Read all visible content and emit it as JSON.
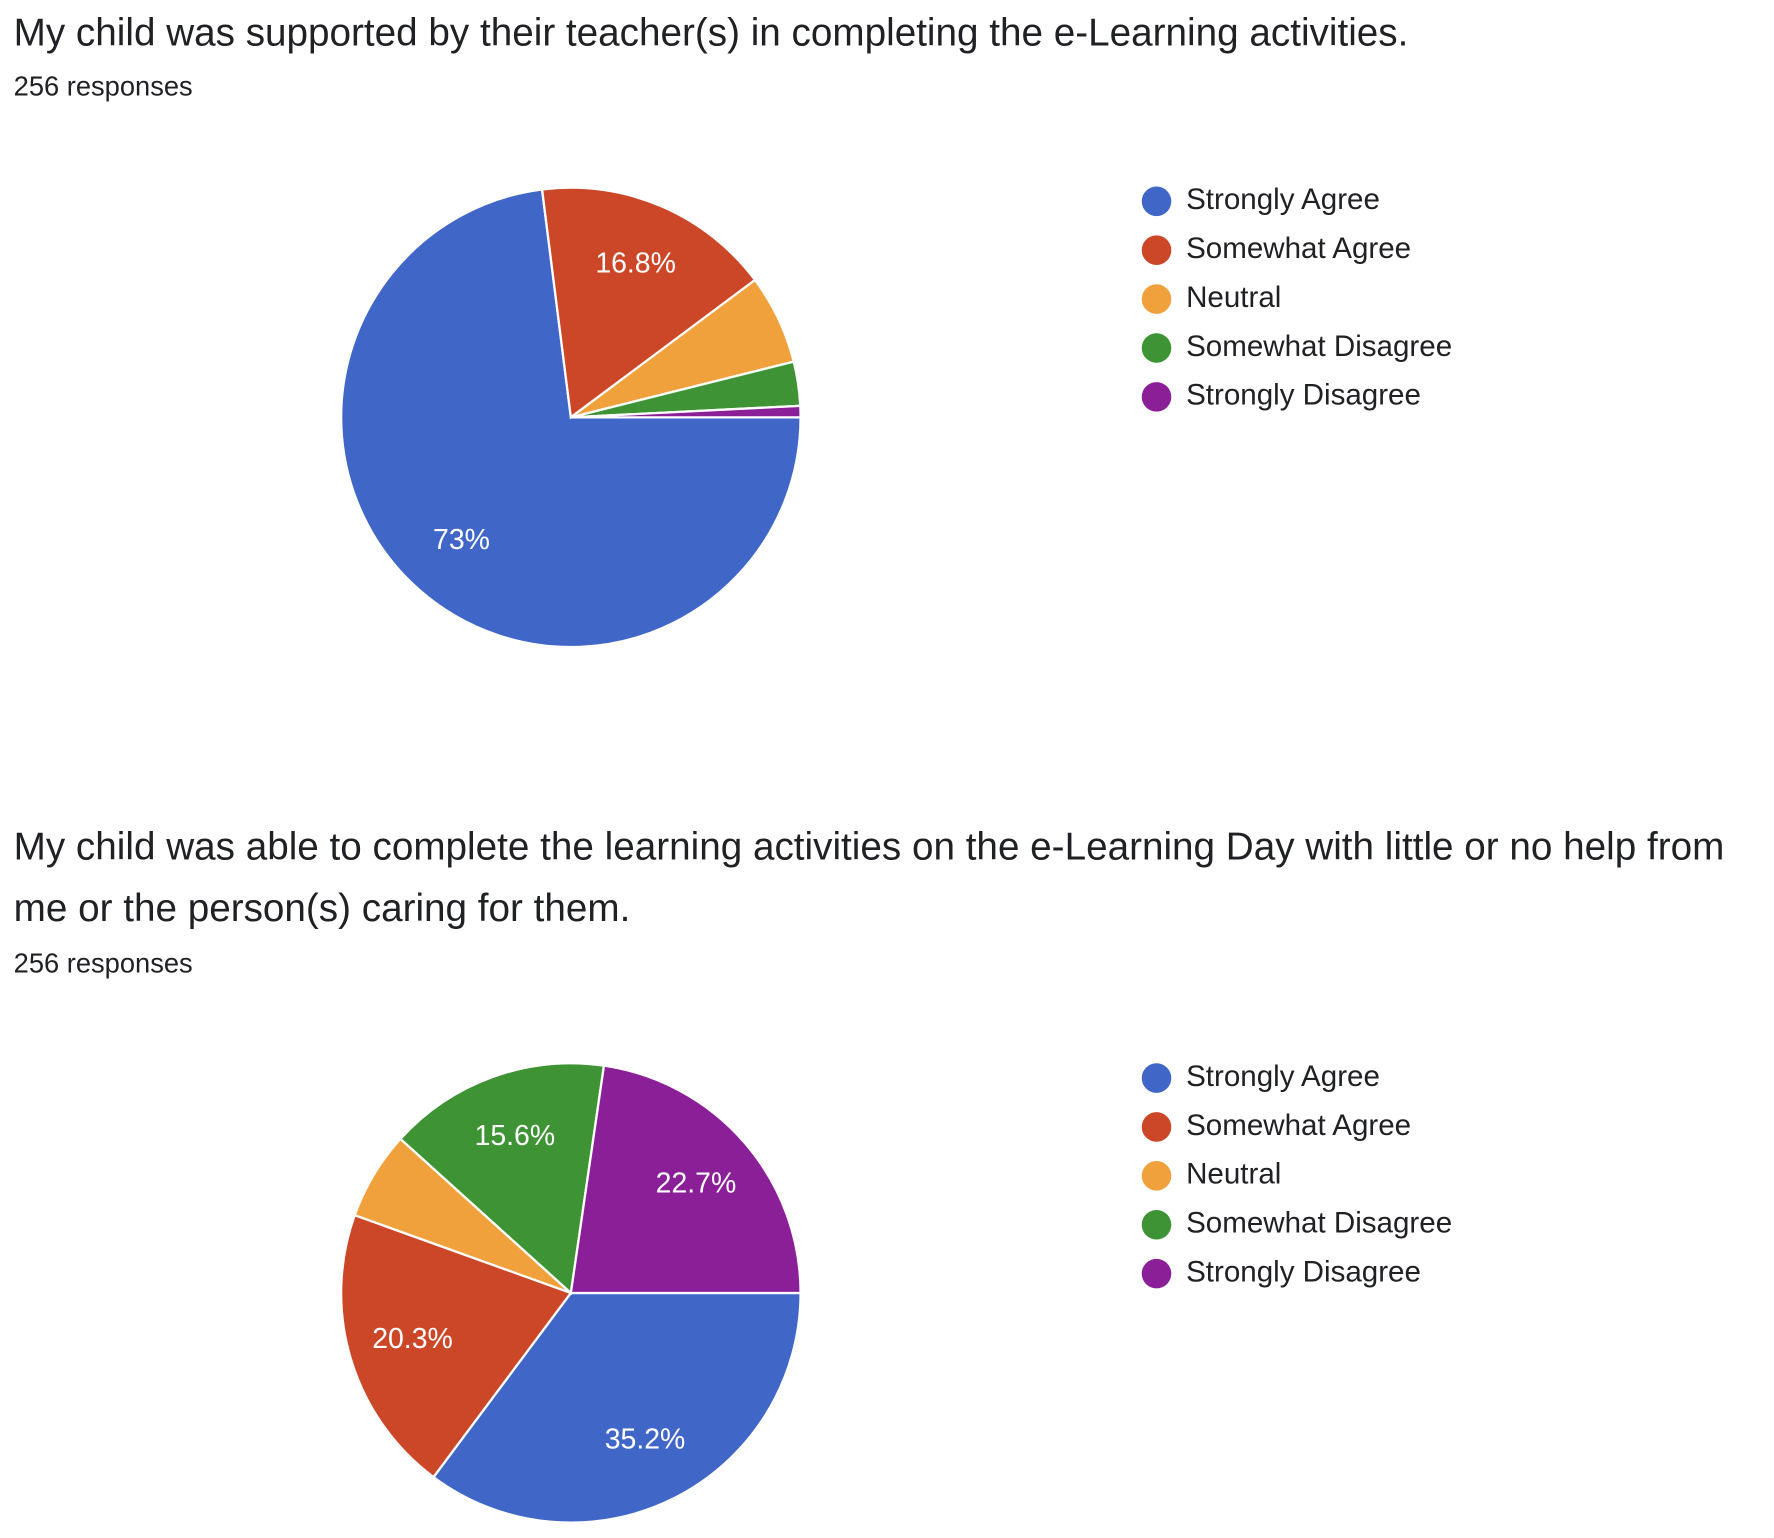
{
  "chart_data": [
    {
      "type": "pie",
      "title": "My child was supported by their teacher(s) in completing the e-Learning activities.",
      "subtitle": "256 responses",
      "categories": [
        "Strongly Agree",
        "Somewhat Agree",
        "Neutral",
        "Somewhat Disagree",
        "Strongly Disagree"
      ],
      "values": [
        73,
        16.8,
        6.3,
        3.1,
        0.8
      ],
      "value_labels": [
        "73%",
        "16.8%",
        null,
        null,
        null
      ],
      "colors": [
        "#4067c7",
        "#cc4727",
        "#f0a13b",
        "#3e9434",
        "#8b1f98"
      ],
      "legend": "right"
    },
    {
      "type": "pie",
      "title": "My child was able to complete the learning activities on the e-Learning Day with little or no help from me or the person(s) caring for them.",
      "subtitle": "256 responses",
      "categories": [
        "Strongly Agree",
        "Somewhat Agree",
        "Neutral",
        "Somewhat Disagree",
        "Strongly Disagree"
      ],
      "values": [
        35.2,
        20.3,
        6.2,
        15.6,
        22.7
      ],
      "value_labels": [
        "35.2%",
        "20.3%",
        null,
        "15.6%",
        "22.7%"
      ],
      "colors": [
        "#4067c7",
        "#cc4727",
        "#f0a13b",
        "#3e9434",
        "#8b1f98"
      ],
      "legend": "right"
    }
  ]
}
